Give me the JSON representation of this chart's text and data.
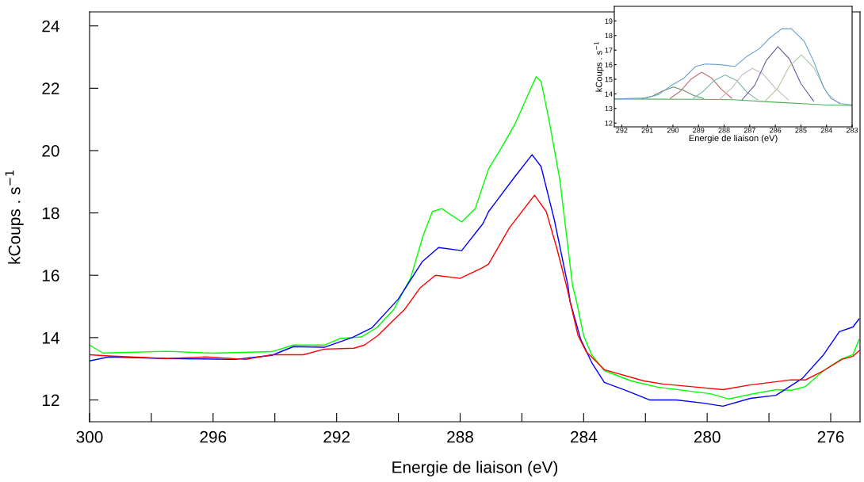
{
  "chart_data": [
    {
      "type": "line",
      "xlabel": "Energie de liaison (eV)",
      "ylabel": "kCoups . s$^{−1}$",
      "xlim": [
        300,
        275.05
      ],
      "ylim": [
        11.3,
        24.45
      ],
      "xticks": [
        300,
        {
          "value": 298,
          "label": null
        },
        296,
        {
          "value": 294,
          "label": null
        },
        292,
        {
          "value": 290,
          "label": null
        },
        288,
        {
          "value": 286,
          "label": null
        },
        284,
        {
          "value": 282,
          "label": null
        },
        280,
        {
          "value": 278,
          "label": null
        },
        276
      ],
      "yticks": [
        12,
        14,
        16,
        18,
        20,
        22,
        24
      ],
      "marker": "none",
      "line_style": "solid",
      "series": [
        {
          "color": "#00ff00",
          "x": [
            300,
            299.56,
            299,
            297.5,
            296,
            294.1,
            293.4,
            292.4,
            291.9,
            291.2,
            290.7,
            290.15,
            289.6,
            289.2,
            288.9,
            288.6,
            287.95,
            287.51,
            287.08,
            286.67,
            286.23,
            285.54,
            285.38,
            285.13,
            284.77,
            284.36,
            284.23,
            284.0,
            283.74,
            283.33,
            282.46,
            281.6,
            279.9,
            279.3,
            278.6,
            277.77,
            277.26,
            276.82,
            276.23,
            275.64,
            275.28,
            275.08
          ],
          "values": [
            13.76,
            13.5,
            13.52,
            13.56,
            13.5,
            13.55,
            13.76,
            13.76,
            13.97,
            14.02,
            14.32,
            14.9,
            15.92,
            17.27,
            18.04,
            18.14,
            17.71,
            18.14,
            19.41,
            20.08,
            20.84,
            22.37,
            22.22,
            21.02,
            19.06,
            15.67,
            15.16,
            14.06,
            13.45,
            12.94,
            12.61,
            12.41,
            12.2,
            12.03,
            12.18,
            12.33,
            12.31,
            12.43,
            12.94,
            13.32,
            13.45,
            13.94
          ]
        },
        {
          "color": "#0000ff",
          "x": [
            300,
            299.38,
            297.5,
            295.3,
            294.1,
            293.4,
            292.4,
            291.5,
            290.85,
            290.0,
            289.23,
            288.7,
            287.95,
            287.26,
            287.08,
            286.23,
            285.67,
            285.38,
            284.95,
            284.51,
            284.44,
            284.1,
            283.74,
            283.33,
            282.64,
            281.87,
            281.0,
            280.15,
            279.49,
            278.6,
            277.77,
            276.92,
            276.23,
            275.72,
            275.28,
            275.08
          ],
          "values": [
            13.25,
            13.38,
            13.33,
            13.3,
            13.43,
            13.71,
            13.69,
            14.0,
            14.32,
            15.24,
            16.43,
            16.89,
            16.79,
            17.66,
            18.04,
            19.16,
            19.87,
            19.49,
            17.78,
            15.67,
            15.16,
            13.96,
            13.2,
            12.56,
            12.31,
            12.0,
            12.0,
            11.9,
            11.8,
            12.05,
            12.15,
            12.69,
            13.45,
            14.19,
            14.34,
            14.6
          ]
        },
        {
          "color": "#ff0000",
          "x": [
            300,
            299.38,
            297.5,
            296.23,
            294.95,
            294.1,
            293.08,
            292.4,
            291.44,
            291.1,
            290.67,
            290.15,
            289.8,
            289.3,
            288.8,
            288.0,
            287.26,
            287.08,
            286.4,
            285.59,
            285.21,
            284.87,
            284.56,
            284.44,
            284.18,
            283.92,
            283.33,
            282.05,
            281.44,
            280.33,
            279.49,
            278.62,
            277.33,
            276.82,
            276.23,
            275.64,
            275.28,
            275.08
          ],
          "values": [
            13.45,
            13.41,
            13.33,
            13.38,
            13.3,
            13.45,
            13.45,
            13.63,
            13.66,
            13.76,
            14.06,
            14.57,
            14.9,
            15.59,
            16.0,
            15.9,
            16.25,
            16.36,
            17.53,
            18.57,
            18.04,
            16.87,
            15.67,
            15.16,
            14.06,
            13.55,
            12.97,
            12.61,
            12.51,
            12.41,
            12.33,
            12.48,
            12.64,
            12.64,
            12.94,
            13.3,
            13.4,
            13.58
          ]
        }
      ]
    },
    {
      "type": "line",
      "xlabel": "Energie de liaison (eV)",
      "ylabel": "kCoups . s$^{−1}$",
      "xlim": [
        292.29,
        283.0
      ],
      "ylim": [
        11.74,
        20.0
      ],
      "xticks": [
        292,
        291,
        290,
        289,
        288,
        287,
        286,
        285,
        284,
        283
      ],
      "yticks": [
        12,
        13,
        14,
        15,
        16,
        17,
        18,
        19
      ],
      "marker": "none",
      "line_style": "solid",
      "series": [
        {
          "color": "#4caf50",
          "x": [
            292.29,
            289.0,
            287.67,
            285.9,
            284.1,
            283.0
          ],
          "values": [
            13.65,
            13.63,
            13.6,
            13.42,
            13.25,
            13.19
          ]
        },
        {
          "color": "#6b8f6b",
          "x": [
            291.2,
            290.8,
            290.4,
            289.98,
            289.6,
            289.2,
            288.8
          ],
          "values": [
            13.68,
            13.85,
            14.2,
            14.47,
            14.25,
            13.9,
            13.68
          ]
        },
        {
          "color": "#c07070",
          "x": [
            290.1,
            289.7,
            289.3,
            288.88,
            288.5,
            288.1,
            287.7
          ],
          "values": [
            13.7,
            14.2,
            15.0,
            15.49,
            15.1,
            14.3,
            13.7
          ]
        },
        {
          "color": "#7fb8b0",
          "x": [
            289.2,
            288.8,
            288.4,
            287.96,
            287.5,
            287.1,
            286.7
          ],
          "values": [
            13.7,
            14.2,
            14.9,
            15.3,
            14.9,
            14.1,
            13.6
          ]
        },
        {
          "color": "#c8b8c0",
          "x": [
            288.2,
            287.7,
            287.3,
            286.9,
            286.5,
            286.0,
            285.5
          ],
          "values": [
            13.6,
            14.4,
            15.3,
            15.75,
            15.4,
            14.4,
            13.6
          ]
        },
        {
          "color": "#6a5a9a",
          "x": [
            287.3,
            286.8,
            286.35,
            285.9,
            285.45,
            285.0,
            284.5
          ],
          "values": [
            13.6,
            14.6,
            16.3,
            17.23,
            16.4,
            14.7,
            13.5
          ]
        },
        {
          "color": "#b0c8a0",
          "x": [
            286.4,
            285.9,
            285.45,
            284.98,
            284.5,
            284.0,
            283.5
          ],
          "values": [
            13.5,
            14.4,
            15.9,
            16.67,
            15.8,
            14.1,
            13.3
          ]
        },
        {
          "color": "#6a9fd0",
          "x": [
            292.29,
            291.04,
            290.56,
            290.08,
            289.6,
            289.12,
            288.73,
            288.15,
            287.58,
            287.1,
            286.62,
            286.23,
            285.75,
            285.37,
            284.88,
            284.5,
            284.12,
            283.83,
            283.44,
            283.0
          ],
          "values": [
            13.65,
            13.72,
            13.95,
            14.56,
            15.04,
            15.88,
            16.05,
            16.0,
            15.88,
            16.58,
            17.1,
            17.81,
            18.46,
            18.46,
            17.63,
            16.23,
            14.47,
            13.68,
            13.33,
            13.25
          ]
        }
      ]
    }
  ]
}
